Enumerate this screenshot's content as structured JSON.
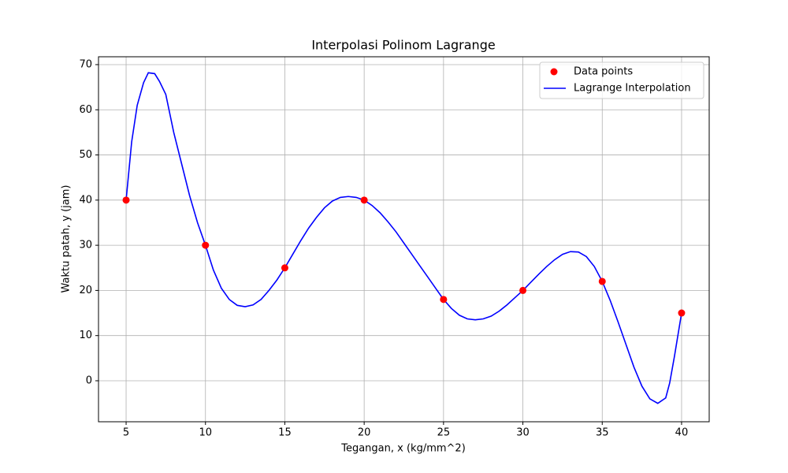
{
  "chart_data": {
    "type": "line",
    "title": "Interpolasi Polinom Lagrange",
    "xlabel": "Tegangan, x (kg/mm^2)",
    "ylabel": "Waktu patah, y (jam)",
    "xlim": [
      3.26,
      41.74
    ],
    "ylim": [
      -9.08,
      71.74
    ],
    "xticks": [
      5,
      10,
      15,
      20,
      25,
      30,
      35,
      40
    ],
    "yticks": [
      0,
      10,
      20,
      30,
      40,
      50,
      60,
      70
    ],
    "grid": true,
    "legend": "upper right",
    "series": [
      {
        "name": "Data points",
        "type": "scatter",
        "color": "#ff0000",
        "x": [
          5,
          10,
          15,
          20,
          25,
          30,
          35,
          40
        ],
        "values": [
          40,
          30,
          25,
          40,
          18,
          20,
          22,
          15
        ]
      },
      {
        "name": "Lagrange Interpolation",
        "type": "line",
        "color": "#0000ff",
        "x": [
          5,
          5.35,
          5.7,
          6.1,
          6.4,
          6.8,
          7.1,
          7.5,
          8,
          8.5,
          9,
          9.5,
          10,
          10.5,
          11,
          11.5,
          12,
          12.5,
          13,
          13.5,
          14,
          14.5,
          15,
          15.5,
          16,
          16.5,
          17,
          17.5,
          18,
          18.5,
          19,
          19.5,
          20,
          20.5,
          21,
          21.5,
          22,
          22.5,
          23,
          23.5,
          24,
          24.5,
          25,
          25.5,
          26,
          26.5,
          27,
          27.5,
          28,
          28.5,
          29,
          29.5,
          30,
          30.5,
          31,
          31.5,
          32,
          32.5,
          33,
          33.5,
          34,
          34.5,
          35,
          35.5,
          36,
          36.5,
          37,
          37.5,
          38,
          38.5,
          39,
          39.25,
          39.55,
          40
        ],
        "values": [
          40,
          52.9,
          61,
          66,
          68.2,
          68,
          66.3,
          63.4,
          55,
          48,
          41,
          35,
          30,
          24.5,
          20.5,
          18,
          16.7,
          16.4,
          16.8,
          18,
          20,
          22.3,
          25,
          28,
          31,
          33.8,
          36.2,
          38.3,
          39.8,
          40.6,
          40.8,
          40.6,
          40,
          38.8,
          37.2,
          35.2,
          33,
          30.5,
          28,
          25.5,
          23,
          20.5,
          18,
          16,
          14.5,
          13.7,
          13.5,
          13.7,
          14.3,
          15.4,
          16.8,
          18.4,
          20,
          21.8,
          23.6,
          25.3,
          26.8,
          28,
          28.6,
          28.5,
          27.5,
          25.3,
          22,
          17.8,
          13,
          8,
          3,
          -1.2,
          -4,
          -5,
          -3.8,
          -0.5,
          5.4,
          15
        ]
      }
    ]
  }
}
